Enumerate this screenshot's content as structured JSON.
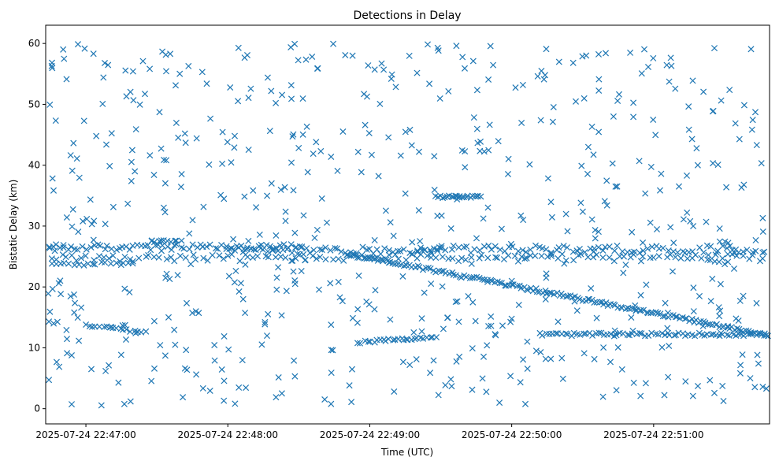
{
  "chart_data": {
    "type": "scatter",
    "title": "Detections in Delay",
    "xlabel": "Time (UTC)",
    "ylabel": "Bistatic Delay (km)",
    "x_axis": {
      "ticks": [
        "2025-07-24 22:47:00",
        "2025-07-24 22:48:00",
        "2025-07-24 22:49:00",
        "2025-07-24 22:50:00",
        "2025-07-24 22:51:00"
      ],
      "range": [
        "2025-07-24 22:46:43",
        "2025-07-24 22:51:49"
      ]
    },
    "y_axis": {
      "ticks": [
        "0",
        "10",
        "20",
        "30",
        "40",
        "50",
        "60"
      ],
      "range": [
        -2.5,
        63
      ]
    },
    "marker": "x",
    "grid": false,
    "series": [
      {
        "color": "#1f77b4",
        "tracks": [
          {
            "x_start": "2025-07-24 22:46:43",
            "x_end": "2025-07-24 22:48:30",
            "y": 26.5,
            "n": 70,
            "jitter": 0.5
          },
          {
            "x_start": "2025-07-24 22:48:00",
            "x_end": "2025-07-24 22:49:30",
            "y": 26.0,
            "n": 55,
            "jitter": 0.6
          },
          {
            "x_start": "2025-07-24 22:49:20",
            "x_end": "2025-07-24 22:51:49",
            "y": 26.2,
            "n": 85,
            "jitter": 0.6
          },
          {
            "x_start": "2025-07-24 22:46:43",
            "x_end": "2025-07-24 22:51:49",
            "y": 24.8,
            "n": 140,
            "jitter": 0.6
          },
          {
            "x_start": "2025-07-24 22:46:43",
            "x_end": "2025-07-24 22:47:20",
            "y": 23.8,
            "n": 20,
            "jitter": 0.3
          },
          {
            "x_start": "2025-07-24 22:48:50",
            "x_end": "2025-07-24 22:49:50",
            "y_start": 25.5,
            "y_end": 21.0,
            "n": 55,
            "jitter": 0.3
          },
          {
            "x_start": "2025-07-24 22:49:50",
            "x_end": "2025-07-24 22:51:49",
            "y_start": 21.0,
            "y_end": 12.0,
            "n": 120,
            "jitter": 0.25
          },
          {
            "x_start": "2025-07-24 22:47:00",
            "x_end": "2025-07-24 22:47:25",
            "y_start": 13.8,
            "y_end": 12.5,
            "n": 18,
            "jitter": 0.2
          },
          {
            "x_start": "2025-07-24 22:48:55",
            "x_end": "2025-07-24 22:49:28",
            "y_start": 10.9,
            "y_end": 11.8,
            "n": 26,
            "jitter": 0.2
          },
          {
            "x_start": "2025-07-24 22:50:12",
            "x_end": "2025-07-24 22:51:49",
            "y": 12.2,
            "n": 75,
            "jitter": 0.25
          },
          {
            "x_start": "2025-07-24 22:49:28",
            "x_end": "2025-07-24 22:49:47",
            "y": 34.8,
            "n": 22,
            "jitter": 0.2
          },
          {
            "x_start": "2025-07-24 22:47:28",
            "x_end": "2025-07-24 22:47:40",
            "y": 27.5,
            "n": 10,
            "jitter": 0.15
          }
        ],
        "scatter": {
          "x_start": "2025-07-24 22:46:43",
          "x_end": "2025-07-24 22:51:49",
          "y_min": 0.5,
          "y_max": 60,
          "n": 620
        }
      }
    ]
  }
}
